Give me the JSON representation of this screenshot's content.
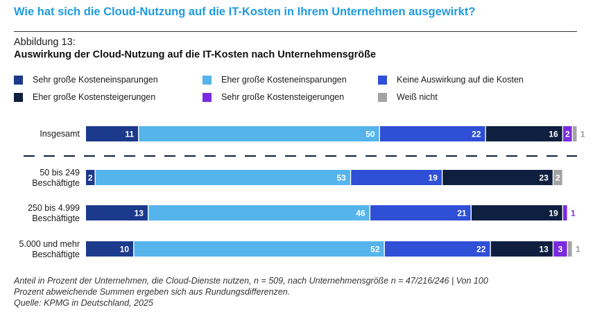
{
  "header": {
    "question": "Wie hat sich die Cloud-Nutzung auf die IT-Kosten in Ihrem Unternehmen ausgewirkt?",
    "figure_label": "Abbildung 13:",
    "figure_title": "Auswirkung der Cloud-Nutzung auf die IT-Kosten nach Unternehmensgröße"
  },
  "chart_data": {
    "type": "bar",
    "orientation": "horizontal",
    "stacked": true,
    "unit": "Prozent",
    "categories": [
      "Insgesamt",
      "50 bis 249 Beschäftigte",
      "250 bis 4.999 Beschäftigte",
      "5.000 und mehr Beschäftigte"
    ],
    "series": [
      {
        "name": "Sehr große Kosteneinsparungen",
        "color": "#1c3a8c",
        "values": [
          11,
          2,
          13,
          10
        ]
      },
      {
        "name": "Eher große Kosteneinsparungen",
        "color": "#55b4ec",
        "values": [
          50,
          53,
          46,
          52
        ]
      },
      {
        "name": "Keine Auswirkung auf die Kosten",
        "color": "#2e4fd6",
        "values": [
          22,
          19,
          21,
          22
        ]
      },
      {
        "name": "Eher große Kostensteigerungen",
        "color": "#0f1f3f",
        "values": [
          16,
          23,
          19,
          13
        ]
      },
      {
        "name": "Sehr große Kostensteigerungen",
        "color": "#7a2be0",
        "values": [
          2,
          0,
          1,
          3
        ]
      },
      {
        "name": "Weiß nicht",
        "color": "#a3a3a3",
        "values": [
          1,
          2,
          0,
          1
        ]
      }
    ],
    "legend_position": "top",
    "legend_layout": "3 columns, 2 rows",
    "divider_after_category": "Insgesamt",
    "grid": false
  },
  "notes": {
    "line1": "Anteil in Prozent der Unternehmen, die Cloud-Dienste nutzen, n = 509, nach Unternehmensgröße n = 47/216/246 | Von 100",
    "line2": "Prozent abweichende Summen ergeben sich aus Rundungsdifferenzen.",
    "source": "Quelle: KPMG in Deutschland, 2025"
  }
}
